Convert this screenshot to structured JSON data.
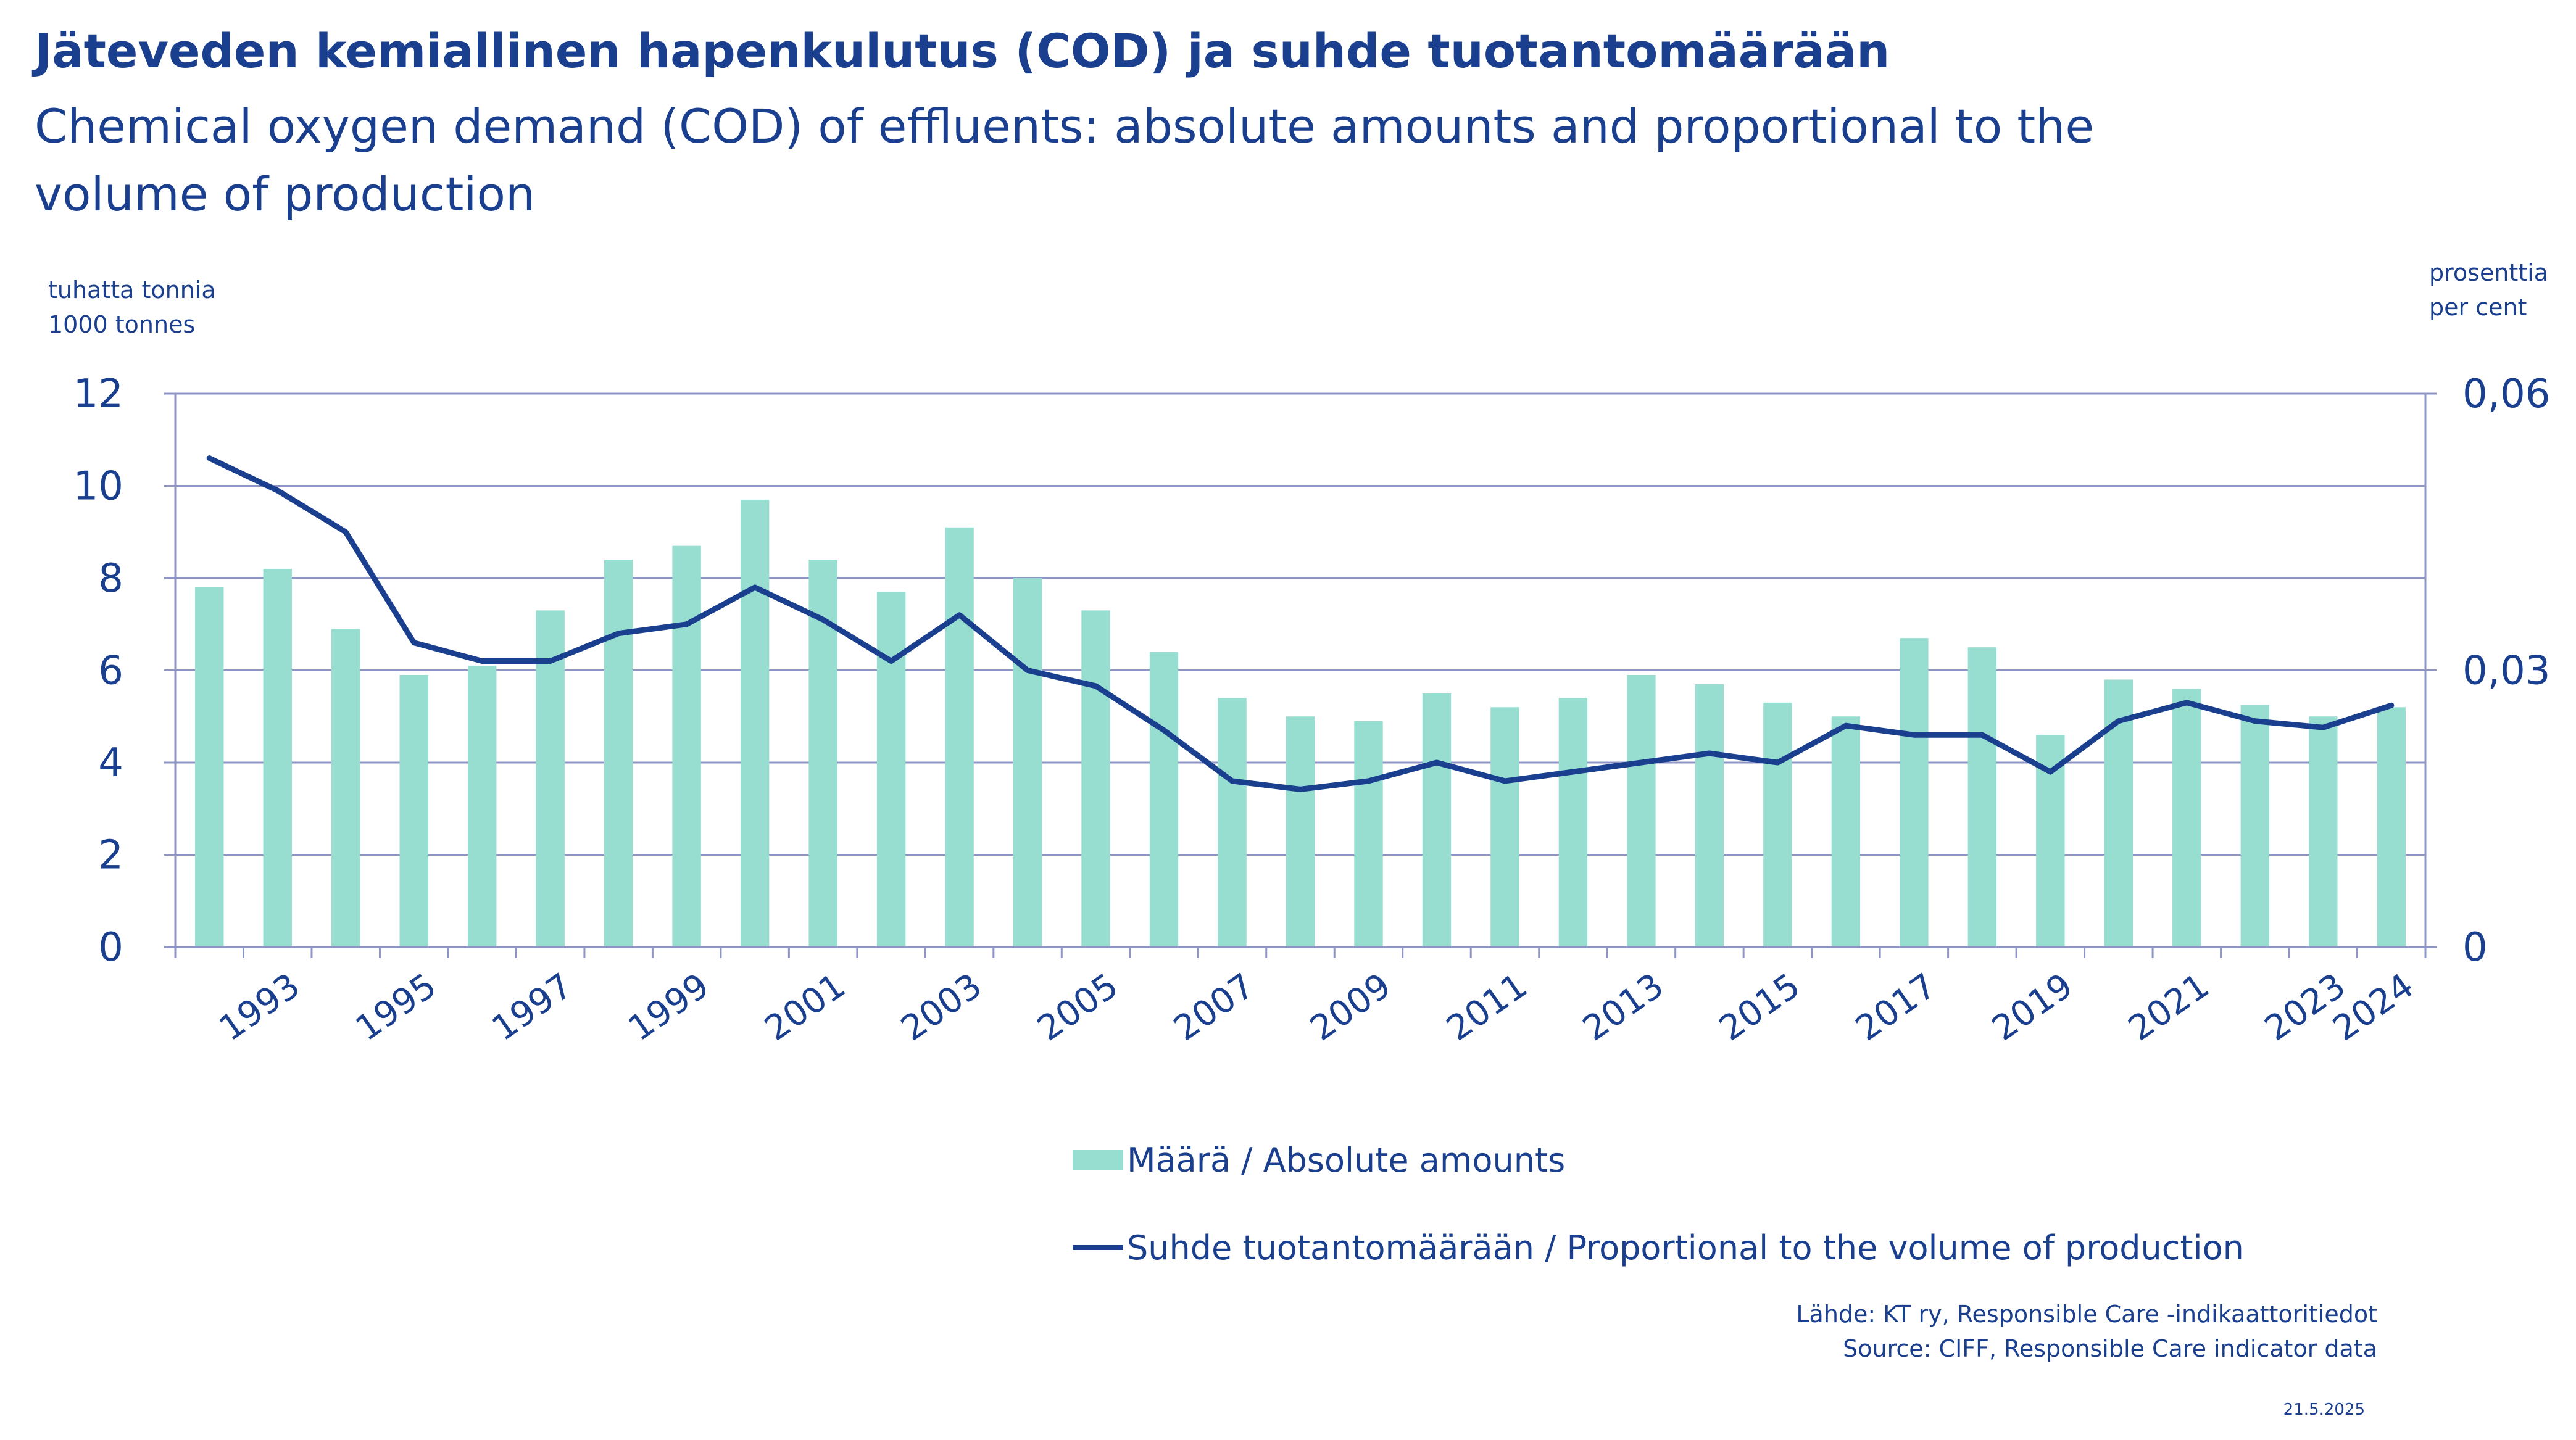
{
  "title": "Jäteveden kemiallinen hapenkulutus (COD) ja suhde tuotantomäärään",
  "subtitle": "Chemical oxygen demand (COD) of effluents: absolute amounts and proportional to the volume of production",
  "units": {
    "left_line1": "tuhatta tonnia",
    "left_line2": "1000 tonnes",
    "right_line1": "prosenttia",
    "right_line2": "per cent"
  },
  "legend": {
    "bar_label": "Määrä / Absolute amounts",
    "line_label": "Suhde tuotantomäärään / Proportional to the volume of production"
  },
  "source": {
    "line1": "Lähde: KT ry, Responsible Care -indikaattoritiedot",
    "line2": "Source: CIFF, Responsible Care indicator data"
  },
  "date": "21.5.2025",
  "colors": {
    "bar": "#97ddd0",
    "line": "#1a3f8f",
    "text": "#1a3f8f",
    "grid": "#8e94c4"
  },
  "chart_data": {
    "type": "bar",
    "categories": [
      "1992",
      "1993",
      "1994",
      "1995",
      "1996",
      "1997",
      "1998",
      "1999",
      "2000",
      "2001",
      "2002",
      "2003",
      "2004",
      "2005",
      "2006",
      "2007",
      "2008",
      "2009",
      "2010",
      "2011",
      "2012",
      "2013",
      "2014",
      "2015",
      "2016",
      "2017",
      "2018",
      "2019",
      "2020",
      "2021",
      "2022",
      "2023",
      "2024"
    ],
    "x_tick_labels": [
      "1993",
      "1995",
      "1997",
      "1999",
      "2001",
      "2003",
      "2005",
      "2007",
      "2009",
      "2011",
      "2013",
      "2015",
      "2017",
      "2019",
      "2021",
      "2023",
      "2024"
    ],
    "series": [
      {
        "name": "Määrä / Absolute amounts",
        "type": "bar",
        "axis": "left",
        "values": [
          7.8,
          8.2,
          6.9,
          5.9,
          6.1,
          7.3,
          8.4,
          8.7,
          9.7,
          8.4,
          7.7,
          9.1,
          8.0,
          7.3,
          6.4,
          5.4,
          5.0,
          4.9,
          5.5,
          5.2,
          5.4,
          5.9,
          5.7,
          5.3,
          5.0,
          6.7,
          6.5,
          4.6,
          5.8,
          5.6,
          5.25,
          5.0,
          5.2
        ]
      },
      {
        "name": "Suhde tuotantomäärään / Proportional to the volume of production",
        "type": "line",
        "axis": "right",
        "values": [
          0.053,
          0.0495,
          0.045,
          0.033,
          0.031,
          0.031,
          0.034,
          0.035,
          0.039,
          0.0355,
          0.031,
          0.036,
          0.03,
          0.0283,
          0.0235,
          0.018,
          0.0171,
          0.018,
          0.02,
          0.018,
          0.019,
          0.02,
          0.021,
          0.02,
          0.024,
          0.023,
          0.023,
          0.019,
          0.0245,
          0.0265,
          0.0245,
          0.0238,
          0.0262
        ]
      }
    ],
    "ylim": [
      0,
      12
    ],
    "y_ticks": [
      "0",
      "2",
      "4",
      "6",
      "8",
      "10",
      "12"
    ],
    "y2lim": [
      0,
      0.06
    ],
    "y2_ticks": [
      "0",
      "0,03",
      "0,06"
    ],
    "grid": true,
    "legend_position": "bottom"
  }
}
